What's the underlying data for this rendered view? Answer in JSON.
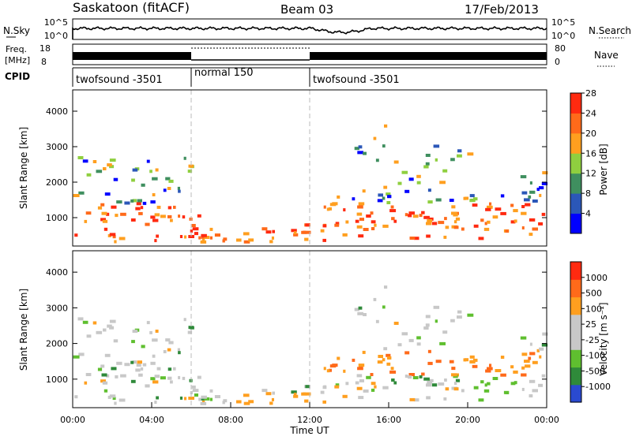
{
  "header": {
    "station": "Saskatoon (fitACF)",
    "beam": "Beam 03",
    "date": "17/Feb/2013"
  },
  "top_panels": {
    "nsky_label": "N.Sky",
    "nsearch_label": "N.Search",
    "freq_label_1": "Freq.",
    "freq_label_2": "[MHz]",
    "nave_label": "Nave",
    "cpid_label": "CPID",
    "nsky_ticks": [
      "10^5",
      "10^0"
    ],
    "nsearch_ticks": [
      "10^5",
      "10^0"
    ],
    "freq_ticks": [
      "18",
      "8"
    ],
    "nave_ticks": [
      "80",
      "0"
    ],
    "cpid_segments": [
      {
        "label": "twofsound -3501",
        "start_hour": 0,
        "end_hour": 6
      },
      {
        "label": "normal 150",
        "start_hour": 6,
        "end_hour": 12
      },
      {
        "label": "twofsound -3501",
        "start_hour": 12,
        "end_hour": 24
      }
    ]
  },
  "colors": {
    "power_scale": [
      "#0000ff",
      "#2b57b8",
      "#3f8f5f",
      "#8fcf3f",
      "#ff9f1f",
      "#ff6a1a",
      "#ff2a10"
    ],
    "velocity_scale": [
      "#2a4ad0",
      "#2f8a3a",
      "#5fbf2f",
      "#c8c8c8",
      "#c8c8c8",
      "#ff9f1f",
      "#ff6a1a",
      "#ff2a10"
    ]
  },
  "chart_data": [
    {
      "type": "heatmap",
      "panel": "power",
      "xlabel": "",
      "ylabel": "Slant Range [km]",
      "ylim": [
        200,
        4600
      ],
      "yticks": [
        "1000",
        "2000",
        "3000",
        "4000"
      ],
      "colorbar_label": "Power [dB]",
      "colorbar_ticks": [
        "4",
        "8",
        "12",
        "16",
        "20",
        "24",
        "28"
      ]
    },
    {
      "type": "heatmap",
      "panel": "velocity",
      "xlabel": "Time UT",
      "ylabel": "Slant Range [km]",
      "ylim": [
        200,
        4600
      ],
      "xticks": [
        "00:00",
        "04:00",
        "08:00",
        "12:00",
        "16:00",
        "20:00",
        "00:00"
      ],
      "yticks": [
        "1000",
        "2000",
        "3000",
        "4000"
      ],
      "colorbar_label": "Velocity [m s⁻¹]",
      "colorbar_ticks": [
        "1000",
        "500",
        "100",
        "25",
        "-25",
        "-100",
        "-500",
        "-1000"
      ]
    }
  ]
}
